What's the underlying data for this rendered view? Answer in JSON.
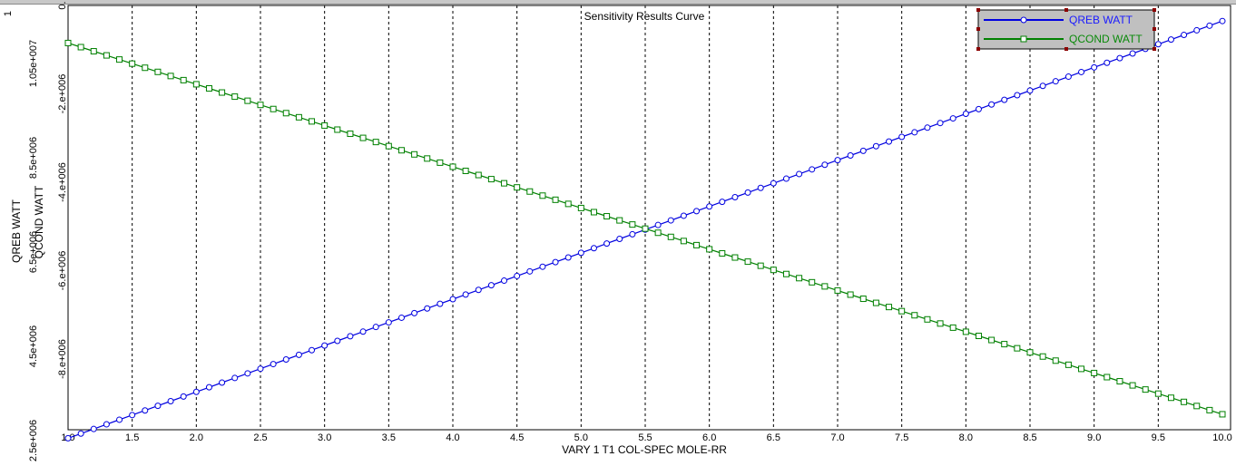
{
  "window": {
    "title": "Sensitivity Results Curve"
  },
  "chart_data": {
    "type": "line",
    "title": "Sensitivity Results Curve",
    "xlabel": "VARY   1 T1 COL-SPEC MOLE-RR",
    "ylabel_left": "QREB WATT",
    "ylabel_right": "QCOND WATT",
    "xlim": [
      1.0,
      10.0
    ],
    "x_ticks": [
      "1.0",
      "1.5",
      "2.0",
      "2.5",
      "3.0",
      "3.5",
      "4.0",
      "4.5",
      "5.0",
      "5.5",
      "6.0",
      "6.5",
      "7.0",
      "7.5",
      "8.0",
      "8.5",
      "9.0",
      "9.5",
      "10.0"
    ],
    "y1_ticks": [
      "2.5e+006",
      "4.5e+006",
      "6.5e+006",
      "8.5e+006",
      "1.05e+007"
    ],
    "y2_ticks": [
      "-8.e+006",
      "-6.e+006",
      "-4.e+006",
      "-2.e+006",
      "0."
    ],
    "y1_top_partial": "1",
    "y1_lim": [
      2500000.0,
      11500000.0
    ],
    "y2_lim": [
      -9600000.0,
      0.0
    ],
    "x_start": 1.0,
    "x_end": 10.0,
    "x_step": 0.1,
    "series": [
      {
        "name": "QREB WATT",
        "axis": "left",
        "color": "#0000e0",
        "marker": "circle",
        "start": 2550000.0,
        "end": 11400000.0
      },
      {
        "name": "QCOND WATT",
        "axis": "right",
        "color": "#008000",
        "marker": "square",
        "start": -850000.0,
        "end": -9250000.0
      }
    ],
    "grid": {
      "vertical": true,
      "style": "dashed"
    },
    "legend": "top-right"
  }
}
